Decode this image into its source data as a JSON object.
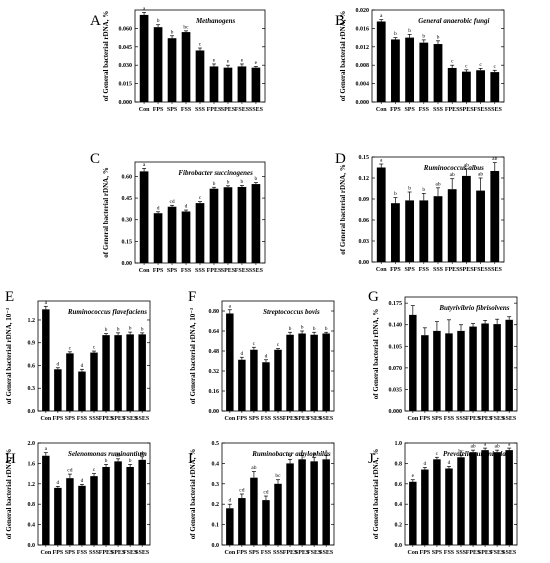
{
  "chart_data": [
    {
      "panel": "A",
      "type": "bar",
      "title": "Methanogens",
      "ylabel": "of General bacterial rDNA, %",
      "categories": [
        "Con",
        "FPS",
        "SPS",
        "FSS",
        "SSS",
        "FPES",
        "SPES",
        "FSES",
        "SSES"
      ],
      "values": [
        0.071,
        0.061,
        0.052,
        0.057,
        0.042,
        0.029,
        0.028,
        0.029,
        0.028
      ],
      "errors": [
        0.002,
        0.002,
        0.002,
        0.001,
        0.002,
        0.002,
        0.002,
        0.002,
        0.001
      ],
      "letters": [
        "a",
        "b",
        "b",
        "bc",
        "c",
        "e",
        "e",
        "e",
        "e"
      ],
      "ylim": [
        0.0,
        0.075
      ],
      "ticks": [
        0.0,
        0.015,
        0.03,
        0.045,
        0.06
      ],
      "tick_labels": [
        "0.000",
        "0.015",
        "0.030",
        "0.045",
        "0.060"
      ]
    },
    {
      "panel": "B",
      "type": "bar",
      "title": "General anaerobic fungi",
      "ylabel": "of General bacterial rDNA, %",
      "categories": [
        "Con",
        "FPS",
        "SPS",
        "FSS",
        "SSS",
        "FPES",
        "SPES",
        "FSES",
        "SSES"
      ],
      "values": [
        0.0175,
        0.0136,
        0.014,
        0.0129,
        0.0126,
        0.0074,
        0.0066,
        0.0069,
        0.0065
      ],
      "errors": [
        0.0004,
        0.0004,
        0.0007,
        0.0006,
        0.0007,
        0.0006,
        0.0004,
        0.0004,
        0.0004
      ],
      "letters": [
        "a",
        "b",
        "b",
        "b",
        "b",
        "c",
        "c",
        "c",
        "c"
      ],
      "ylim": [
        0.0,
        0.02
      ],
      "ticks": [
        0.0,
        0.004,
        0.008,
        0.012,
        0.016,
        0.02
      ],
      "tick_labels": [
        "0.000",
        "0.004",
        "0.008",
        "0.012",
        "0.016",
        "0.020"
      ]
    },
    {
      "panel": "C",
      "type": "bar",
      "title": "Fibrobacter succinogenes",
      "ylabel": "of General bacterial rDNA, %",
      "categories": [
        "Con",
        "FPS",
        "SPS",
        "FSS",
        "SSS",
        "FPES",
        "SPES",
        "FSES",
        "SSES"
      ],
      "values": [
        0.635,
        0.345,
        0.39,
        0.357,
        0.415,
        0.515,
        0.525,
        0.527,
        0.547
      ],
      "errors": [
        0.02,
        0.01,
        0.01,
        0.01,
        0.01,
        0.01,
        0.01,
        0.01,
        0.01
      ],
      "letters": [
        "a",
        "d",
        "cd",
        "d",
        "c",
        "b",
        "b",
        "b",
        "b"
      ],
      "ylim": [
        0.0,
        0.7
      ],
      "ticks": [
        0.0,
        0.15,
        0.3,
        0.45,
        0.6
      ],
      "tick_labels": [
        "0.00",
        "0.15",
        "0.30",
        "0.45",
        "0.60"
      ]
    },
    {
      "panel": "D",
      "type": "bar",
      "title": "Ruminococcus albus",
      "ylabel": "of General bacterial rDNA, %",
      "categories": [
        "Con",
        "FPS",
        "SPS",
        "FSS",
        "SSS",
        "FPES",
        "SPES",
        "FSES",
        "SSES"
      ],
      "values": [
        0.135,
        0.084,
        0.088,
        0.088,
        0.094,
        0.104,
        0.123,
        0.102,
        0.13
      ],
      "errors": [
        0.005,
        0.008,
        0.012,
        0.01,
        0.012,
        0.015,
        0.01,
        0.018,
        0.012
      ],
      "letters": [
        "a",
        "b",
        "b",
        "b",
        "ab",
        "ab",
        "ab",
        "ab",
        "ab"
      ],
      "ylim": [
        0.0,
        0.15
      ],
      "ticks": [
        0.0,
        0.03,
        0.06,
        0.09,
        0.12,
        0.15
      ],
      "tick_labels": [
        "0.00",
        "0.03",
        "0.06",
        "0.09",
        "0.12",
        "0.15"
      ]
    },
    {
      "panel": "E",
      "type": "bar",
      "title": "Ruminococcus flavefaciens",
      "ylabel": "of General bacterial rDNA, 10⁻³",
      "categories": [
        "Con",
        "FPS",
        "SPS",
        "FSS",
        "SSS",
        "FPES",
        "SPES",
        "FSES",
        "SSES"
      ],
      "values": [
        1.34,
        0.55,
        0.76,
        0.52,
        0.77,
        1.0,
        1.0,
        1.01,
        1.01
      ],
      "errors": [
        0.04,
        0.02,
        0.02,
        0.03,
        0.02,
        0.02,
        0.03,
        0.03,
        0.02
      ],
      "letters": [
        "a",
        "d",
        "c",
        "d",
        "c",
        "b",
        "b",
        "b",
        "b"
      ],
      "ylim": [
        0.0,
        1.45
      ],
      "ticks": [
        0.0,
        0.3,
        0.6,
        0.9,
        1.2
      ],
      "tick_labels": [
        "0.0",
        "0.3",
        "0.6",
        "0.9",
        "1.2"
      ]
    },
    {
      "panel": "F",
      "type": "bar",
      "title": "Streptococcus bovis",
      "ylabel": "of General bacterial rDNA, 10⁻³",
      "categories": [
        "Con",
        "FPS",
        "SPS",
        "FSS",
        "SSS",
        "FPES",
        "SPES",
        "FSES",
        "SSES"
      ],
      "values": [
        0.78,
        0.41,
        0.49,
        0.39,
        0.49,
        0.61,
        0.62,
        0.61,
        0.62
      ],
      "errors": [
        0.03,
        0.02,
        0.02,
        0.02,
        0.01,
        0.02,
        0.02,
        0.02,
        0.01
      ],
      "letters": [
        "a",
        "d",
        "c",
        "d",
        "c",
        "b",
        "b",
        "b",
        "b"
      ],
      "ylim": [
        0.0,
        0.88
      ],
      "ticks": [
        0.0,
        0.16,
        0.32,
        0.48,
        0.64,
        0.8
      ],
      "tick_labels": [
        "0.00",
        "0.16",
        "0.32",
        "0.48",
        "0.64",
        "0.80"
      ]
    },
    {
      "panel": "G",
      "type": "bar",
      "title": "Butyrivibrio fibrisolvens",
      "ylabel": "of General bacterial rDNA, %",
      "categories": [
        "Con",
        "FPS",
        "SPS",
        "FSS",
        "SSS",
        "FPES",
        "SPES",
        "FSES",
        "SSES"
      ],
      "values": [
        0.156,
        0.123,
        0.13,
        0.126,
        0.13,
        0.137,
        0.142,
        0.141,
        0.148
      ],
      "errors": [
        0.015,
        0.012,
        0.015,
        0.022,
        0.01,
        0.005,
        0.005,
        0.008,
        0.005
      ],
      "letters": [],
      "ylim": [
        0.0,
        0.185
      ],
      "ticks": [
        0.0,
        0.035,
        0.07,
        0.105,
        0.14,
        0.175
      ],
      "tick_labels": [
        "0.000",
        "0.035",
        "0.070",
        "0.105",
        "0.140",
        "0.175"
      ]
    },
    {
      "panel": "H",
      "type": "bar",
      "title": "Selenomonas ruminantium",
      "ylabel": "of General bacterial rDNA, %",
      "categories": [
        "Con",
        "FPS",
        "SPS",
        "FSS",
        "SSS",
        "FPES",
        "SPES",
        "FSES",
        "SSES"
      ],
      "values": [
        1.75,
        1.12,
        1.31,
        1.16,
        1.35,
        1.53,
        1.64,
        1.53,
        1.67
      ],
      "errors": [
        0.06,
        0.03,
        0.08,
        0.03,
        0.05,
        0.05,
        0.05,
        0.05,
        0.06
      ],
      "letters": [
        "a",
        "d",
        "cd",
        "d",
        "c",
        "b",
        "ab",
        "b",
        "ab"
      ],
      "ylim": [
        0.0,
        2.0
      ],
      "ticks": [
        0.0,
        0.4,
        0.8,
        1.2,
        1.6,
        2.0
      ],
      "tick_labels": [
        "0.0",
        "0.4",
        "0.8",
        "1.2",
        "1.6",
        "2.0"
      ]
    },
    {
      "panel": "I",
      "type": "bar",
      "title": "Ruminobacter amylophilus",
      "ylabel": "of General bacterial rDNA, %",
      "categories": [
        "Con",
        "FPS",
        "SPS",
        "FSS",
        "SSS",
        "FPES",
        "SPES",
        "FSES",
        "SSES"
      ],
      "values": [
        0.18,
        0.23,
        0.33,
        0.22,
        0.3,
        0.4,
        0.42,
        0.41,
        0.42
      ],
      "errors": [
        0.02,
        0.02,
        0.03,
        0.02,
        0.02,
        0.02,
        0.02,
        0.02,
        0.02
      ],
      "letters": [
        "d",
        "cd",
        "ab",
        "cd",
        "bc",
        "a",
        "a",
        "a",
        "a"
      ],
      "ylim": [
        0.0,
        0.5
      ],
      "ticks": [
        0.0,
        0.1,
        0.2,
        0.3,
        0.4,
        0.5
      ],
      "tick_labels": [
        "0.0",
        "0.1",
        "0.2",
        "0.3",
        "0.4",
        "0.5"
      ]
    },
    {
      "panel": "J",
      "type": "bar",
      "title": "Prevotella ruminicola",
      "ylabel": "of General bacterial rDNA, %",
      "categories": [
        "Con",
        "FPS",
        "SPS",
        "FSS",
        "SSS",
        "FPES",
        "SPES",
        "FSES",
        "SSES"
      ],
      "values": [
        0.62,
        0.74,
        0.84,
        0.75,
        0.86,
        0.91,
        0.93,
        0.91,
        0.93
      ],
      "errors": [
        0.02,
        0.02,
        0.02,
        0.02,
        0.02,
        0.02,
        0.02,
        0.02,
        0.02
      ],
      "letters": [
        "e",
        "d",
        "c",
        "d",
        "bc",
        "ab",
        "a",
        "ab",
        "a"
      ],
      "ylim": [
        0.0,
        1.0
      ],
      "ticks": [
        0.0,
        0.2,
        0.4,
        0.6,
        0.8,
        1.0
      ],
      "tick_labels": [
        "0.0",
        "0.2",
        "0.4",
        "0.6",
        "0.8",
        "1.0"
      ]
    }
  ]
}
